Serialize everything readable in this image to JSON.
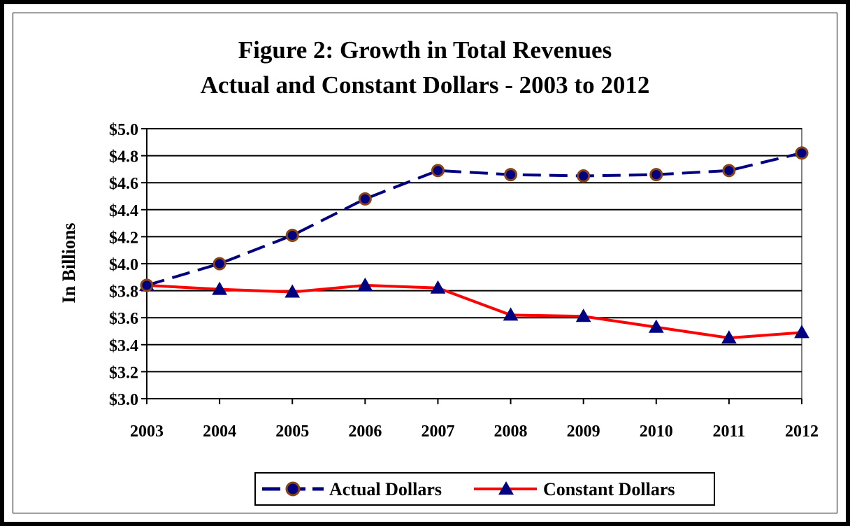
{
  "chart_data": {
    "type": "line",
    "title": "Figure 2:  Growth in Total Revenues",
    "subtitle": "Actual and Constant Dollars - 2003 to 2012",
    "ylabel": "In Billions",
    "xlabel": "",
    "categories": [
      "2003",
      "2004",
      "2005",
      "2006",
      "2007",
      "2008",
      "2009",
      "2010",
      "2011",
      "2012"
    ],
    "ylim": [
      3.0,
      5.0
    ],
    "yticks": [
      3.0,
      3.2,
      3.4,
      3.6,
      3.8,
      4.0,
      4.2,
      4.4,
      4.6,
      4.8,
      5.0
    ],
    "ytick_labels": [
      "$3.0",
      "$3.2",
      "$3.4",
      "$3.6",
      "$3.8",
      "$4.0",
      "$4.2",
      "$4.4",
      "$4.6",
      "$4.8",
      "$5.0"
    ],
    "grid": true,
    "legend": "bottom",
    "series": [
      {
        "name": "Actual Dollars",
        "values": [
          3.84,
          4.0,
          4.21,
          4.48,
          4.69,
          4.66,
          4.65,
          4.66,
          4.69,
          4.82
        ],
        "color": "#000080",
        "marker": "circle",
        "marker_edge": "#8B4513",
        "line_style": "dashed"
      },
      {
        "name": "Constant Dollars",
        "values": [
          3.84,
          3.81,
          3.79,
          3.84,
          3.82,
          3.62,
          3.61,
          3.53,
          3.45,
          3.49
        ],
        "color": "#FF0000",
        "marker": "triangle",
        "marker_color": "#000080",
        "line_style": "solid"
      }
    ]
  }
}
